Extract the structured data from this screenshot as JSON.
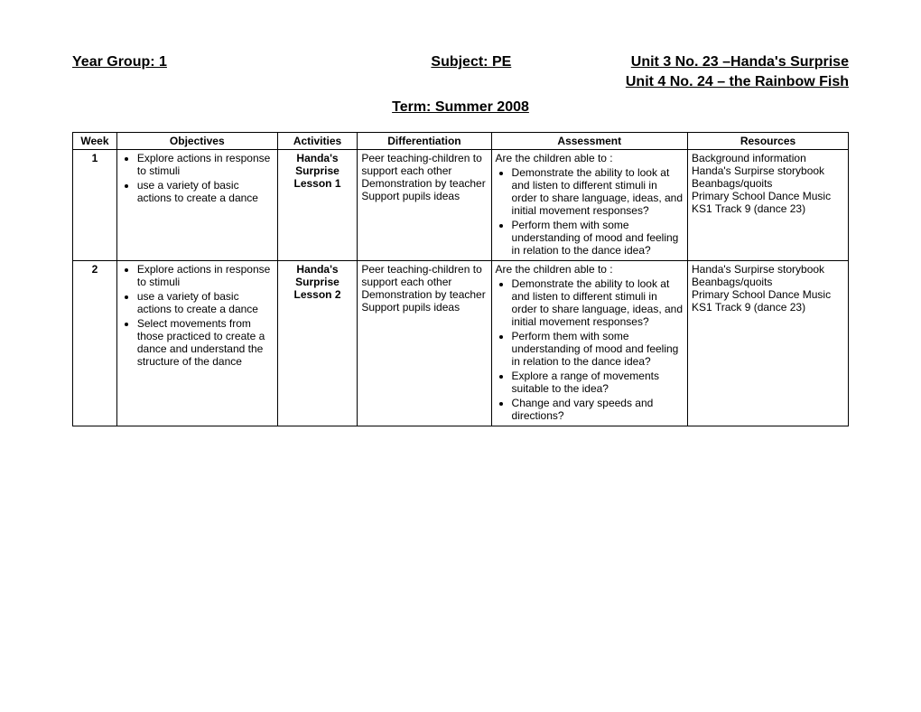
{
  "header": {
    "year_group": "Year Group: 1",
    "subject": "Subject: PE",
    "unit_line1": "Unit 3 No. 23 –Handa's Surprise",
    "unit_line2": "Unit 4 No. 24 – the Rainbow Fish",
    "term": "Term: Summer 2008"
  },
  "columns": {
    "week": "Week",
    "objectives": "Objectives",
    "activities": "Activities",
    "differentiation": "Differentiation",
    "assessment": "Assessment",
    "resources": "Resources"
  },
  "rows": [
    {
      "week": "1",
      "objectives": [
        "Explore actions in response to stimuli",
        "use a variety of basic actions to create a dance"
      ],
      "activities": "Handa's Surprise Lesson 1",
      "differentiation": "Peer teaching-children to support each other\nDemonstration by teacher\nSupport pupils ideas",
      "assessment_lead": "Are the children able to :",
      "assessment": [
        "Demonstrate the ability to look at and listen to different stimuli in order to share language, ideas, and initial movement responses?",
        "Perform them with some understanding of mood and feeling in relation to the dance idea?"
      ],
      "resources": "Background information\nHanda's Surpirse storybook\nBeanbags/quoits\nPrimary School Dance Music KS1 Track 9 (dance 23)"
    },
    {
      "week": "2",
      "objectives": [
        "Explore actions in response to stimuli",
        "use a variety of basic actions to create a dance",
        "Select movements from those practiced to create a dance and understand the structure of the dance"
      ],
      "activities": "Handa's Surprise Lesson 2",
      "differentiation": "Peer teaching-children to support each other\nDemonstration by teacher\nSupport pupils ideas",
      "assessment_lead": "Are the children able to :",
      "assessment": [
        "Demonstrate the ability to look at and listen to different stimuli in order to share language, ideas, and initial movement responses?",
        "Perform them with some understanding of mood and feeling in relation to the dance idea?",
        "Explore a range of movements suitable to the idea?",
        "Change and vary speeds and directions?"
      ],
      "resources": "Handa's Surpirse storybook\nBeanbags/quoits\nPrimary School Dance Music KS1 Track 9 (dance 23)"
    }
  ]
}
